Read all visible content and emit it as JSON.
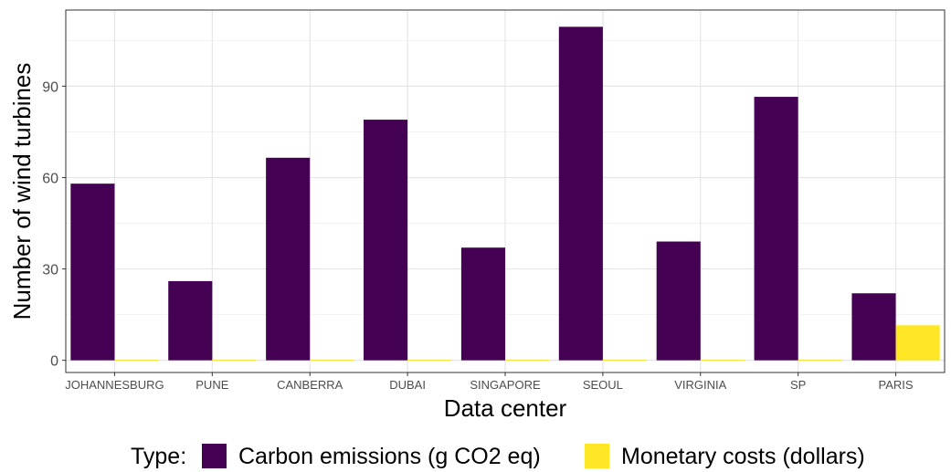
{
  "chart_data": {
    "type": "bar",
    "xlabel": "Data center",
    "ylabel": "Number of wind turbines",
    "categories": [
      "JOHANNESBURG",
      "PUNE",
      "CANBERRA",
      "DUBAI",
      "SINGAPORE",
      "SEOUL",
      "VIRGINIA",
      "SP",
      "PARIS"
    ],
    "series": [
      {
        "name": "Carbon emissions (g CO2 eq)",
        "color": "#440154",
        "values": [
          58,
          26,
          66.5,
          79,
          37,
          109.5,
          39,
          86.5,
          22
        ]
      },
      {
        "name": "Monetary costs (dollars)",
        "color": "#FDE725",
        "values": [
          0,
          0,
          0,
          0,
          0,
          0,
          0,
          0,
          11.5
        ]
      }
    ],
    "ylim": [
      -4,
      115
    ],
    "yticks": [
      0,
      30,
      60,
      90
    ],
    "grid": true,
    "legend": {
      "position": "bottom",
      "title": "Type:"
    }
  }
}
